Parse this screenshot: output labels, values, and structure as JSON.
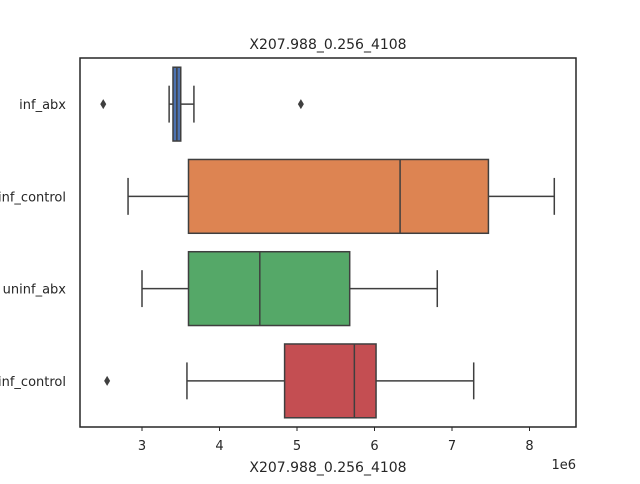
{
  "chart_data": {
    "type": "box",
    "orientation": "horizontal",
    "title": "X207.988_0.256_4108",
    "xlabel": "X207.988_0.256_4108",
    "ylabel": "",
    "x_offset_label": "1e6",
    "x_scale": 1000000,
    "xlim": [
      2200000,
      8600000
    ],
    "xticks": [
      3000000,
      4000000,
      5000000,
      6000000,
      7000000,
      8000000
    ],
    "xtick_labels": [
      "3",
      "4",
      "5",
      "6",
      "7",
      "8"
    ],
    "categories": [
      "inf_abx",
      "inf_control",
      "uninf_abx",
      "inf_control"
    ],
    "boxes": [
      {
        "category": "inf_abx",
        "color": "#4c72b0",
        "whisker_low": 3350000,
        "q1": 3400000,
        "median": 3450000,
        "q3": 3500000,
        "whisker_high": 3670000,
        "outliers": [
          2500000,
          5050000
        ]
      },
      {
        "category": "inf_control",
        "color": "#dd8452",
        "whisker_low": 2820000,
        "q1": 3600000,
        "median": 6330000,
        "q3": 7470000,
        "whisker_high": 8320000,
        "outliers": []
      },
      {
        "category": "uninf_abx",
        "color": "#55a868",
        "whisker_low": 3000000,
        "q1": 3600000,
        "median": 4520000,
        "q3": 5680000,
        "whisker_high": 6810000,
        "outliers": []
      },
      {
        "category": "inf_control",
        "color": "#c44e52",
        "whisker_low": 3580000,
        "q1": 4840000,
        "median": 5740000,
        "q3": 6020000,
        "whisker_high": 7280000,
        "outliers": [
          2550000
        ]
      }
    ]
  }
}
